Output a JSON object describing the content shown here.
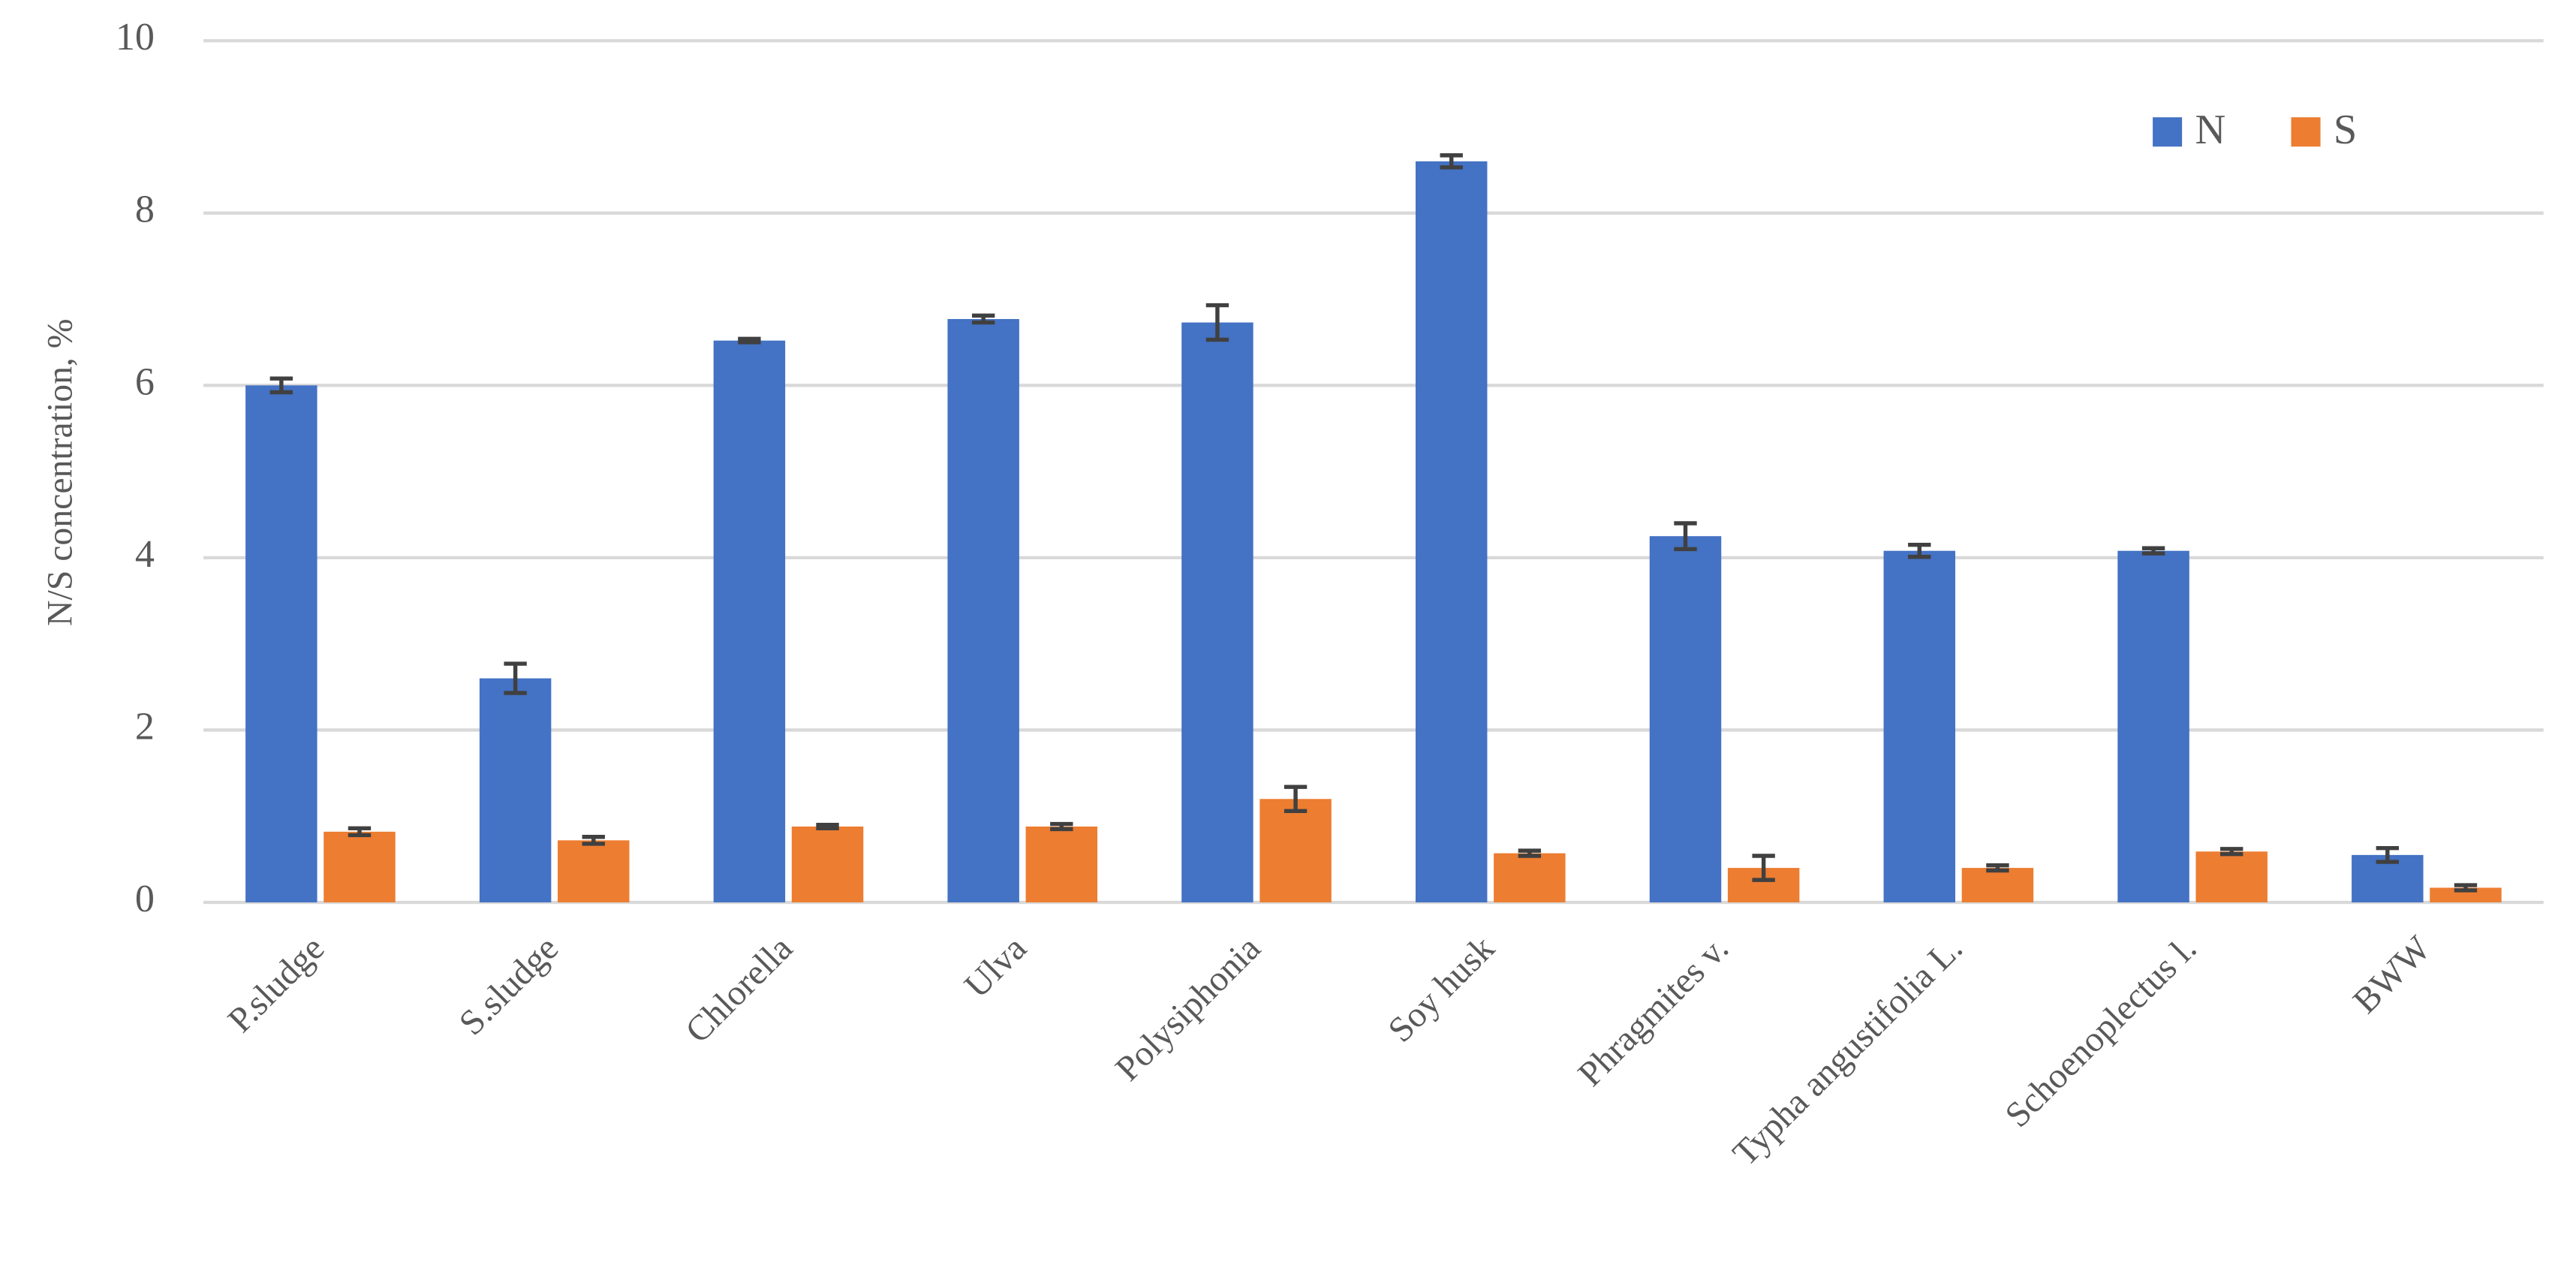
{
  "chart_data": {
    "type": "bar",
    "y_label": "N/S concentration, %",
    "categories": [
      "P.sludge",
      "S.sludge",
      "Chlorella",
      "Ulva",
      "Polysiphonia",
      "Soy husk",
      "Phragmites v.",
      "Typha angustifolia L.",
      "Schoenoplectus l.",
      "BWW"
    ],
    "series": [
      {
        "name": "N",
        "color": "#4472c4",
        "values": [
          6.0,
          2.6,
          6.52,
          6.77,
          6.73,
          8.6,
          4.25,
          4.08,
          4.08,
          0.55
        ],
        "errors": [
          0.08,
          0.17,
          0.02,
          0.04,
          0.2,
          0.07,
          0.15,
          0.07,
          0.03,
          0.08
        ]
      },
      {
        "name": "S",
        "color": "#ed7d31",
        "values": [
          0.82,
          0.72,
          0.88,
          0.88,
          1.2,
          0.57,
          0.4,
          0.4,
          0.59,
          0.17
        ],
        "errors": [
          0.04,
          0.04,
          0.02,
          0.03,
          0.14,
          0.03,
          0.14,
          0.03,
          0.03,
          0.03
        ]
      }
    ],
    "ylim": [
      0,
      10
    ],
    "yticks": [
      0,
      2,
      4,
      6,
      8,
      10
    ],
    "grid": true,
    "legend": "upper right"
  }
}
